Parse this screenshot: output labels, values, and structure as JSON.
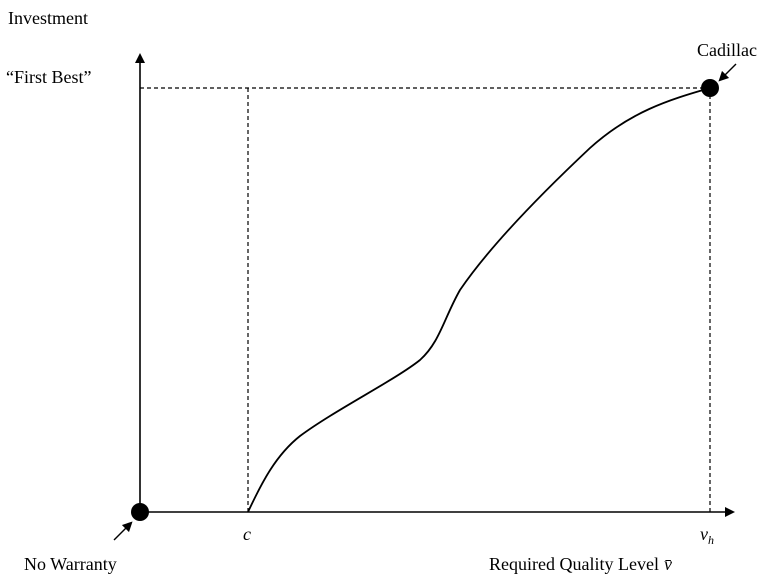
{
  "diagram": {
    "y_axis_label": "Investment",
    "first_best_label": "“First Best”",
    "cadillac_label": "Cadillac",
    "no_warranty_label": "No Warranty",
    "c_label": "c",
    "vh_label": "v",
    "vh_subscript": "h",
    "x_axis_label": "Required Quality Level",
    "x_axis_symbol": "v̄"
  }
}
